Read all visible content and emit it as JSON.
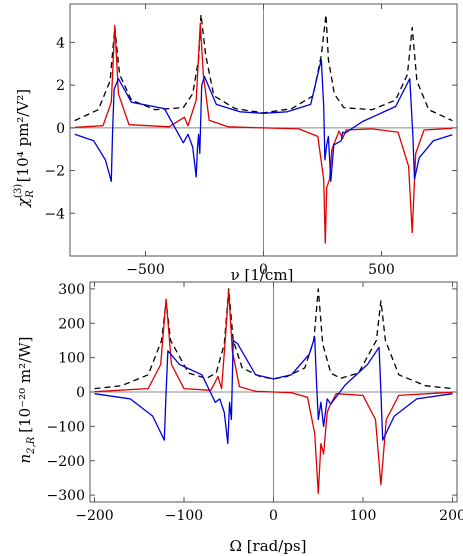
{
  "chart_data": [
    {
      "type": "line",
      "title": "",
      "xlabel": "ν [1/cm]",
      "ylabel_main": "χ",
      "ylabel_sup": "(3)",
      "ylabel_sub": "R",
      "ylabel_units": "[10⁴ pm²/V²]",
      "xlim": [
        -820,
        820
      ],
      "ylim": [
        -6.0,
        5.8
      ],
      "xticks": [
        -500,
        0,
        500
      ],
      "xtick_labels": [
        "−500",
        "0",
        "500"
      ],
      "yticks": [
        -4,
        -2,
        0,
        2,
        4
      ],
      "ytick_labels": [
        "−4",
        "−2",
        "0",
        "2",
        "4"
      ],
      "grid": false,
      "legend": "none",
      "series": [
        {
          "color": "#000000",
          "dash": "dashed",
          "values": [
            [
              -800,
              0.34
            ],
            [
              -700,
              0.85
            ],
            [
              -650,
              2.2
            ],
            [
              -630,
              4.7
            ],
            [
              -610,
              2.5
            ],
            [
              -560,
              1.3
            ],
            [
              -460,
              0.85
            ],
            [
              -340,
              0.95
            ],
            [
              -300,
              1.6
            ],
            [
              -275,
              3.2
            ],
            [
              -265,
              5.3
            ],
            [
              -245,
              3.4
            ],
            [
              -210,
              1.5
            ],
            [
              -120,
              0.9
            ],
            [
              0,
              0.7
            ],
            [
              120,
              0.9
            ],
            [
              210,
              1.5
            ],
            [
              245,
              3.4
            ],
            [
              265,
              5.3
            ],
            [
              275,
              3.2
            ],
            [
              300,
              1.6
            ],
            [
              340,
              0.95
            ],
            [
              460,
              0.85
            ],
            [
              560,
              1.3
            ],
            [
              610,
              2.5
            ],
            [
              630,
              4.7
            ],
            [
              650,
              2.2
            ],
            [
              700,
              0.85
            ],
            [
              800,
              0.34
            ]
          ]
        },
        {
          "color": "#e00000",
          "dash": "solid",
          "values": [
            [
              -800,
              0.02
            ],
            [
              -680,
              0.1
            ],
            [
              -645,
              1.2
            ],
            [
              -630,
              4.8
            ],
            [
              -615,
              1.6
            ],
            [
              -570,
              0.15
            ],
            [
              -400,
              0.05
            ],
            [
              -335,
              0.5
            ],
            [
              -320,
              0.1
            ],
            [
              -285,
              1.3
            ],
            [
              -268,
              4.9
            ],
            [
              -255,
              2.5
            ],
            [
              -230,
              0.35
            ],
            [
              -150,
              0.05
            ],
            [
              0,
              0.0
            ],
            [
              150,
              -0.05
            ],
            [
              230,
              -0.4
            ],
            [
              255,
              -2.4
            ],
            [
              262,
              -5.4
            ],
            [
              268,
              -2.8
            ],
            [
              280,
              -2.4
            ],
            [
              290,
              -1.0
            ],
            [
              320,
              -0.15
            ],
            [
              335,
              -0.5
            ],
            [
              350,
              -0.1
            ],
            [
              460,
              -0.05
            ],
            [
              570,
              -0.2
            ],
            [
              615,
              -1.8
            ],
            [
              630,
              -4.9
            ],
            [
              645,
              -1.2
            ],
            [
              680,
              -0.1
            ],
            [
              800,
              -0.02
            ]
          ]
        },
        {
          "color": "#0000dd",
          "dash": "solid",
          "values": [
            [
              -800,
              -0.3
            ],
            [
              -720,
              -0.6
            ],
            [
              -670,
              -1.5
            ],
            [
              -645,
              -2.5
            ],
            [
              -640,
              -0.3
            ],
            [
              -633,
              1.8
            ],
            [
              -615,
              2.3
            ],
            [
              -560,
              1.2
            ],
            [
              -420,
              0.9
            ],
            [
              -340,
              -0.7
            ],
            [
              -320,
              -0.3
            ],
            [
              -300,
              -0.9
            ],
            [
              -285,
              -2.3
            ],
            [
              -280,
              -1.0
            ],
            [
              -275,
              -0.3
            ],
            [
              -270,
              -1.2
            ],
            [
              -262,
              2.0
            ],
            [
              -250,
              2.4
            ],
            [
              -200,
              1.1
            ],
            [
              -100,
              0.75
            ],
            [
              0,
              0.68
            ],
            [
              100,
              0.75
            ],
            [
              200,
              1.1
            ],
            [
              245,
              3.2
            ],
            [
              255,
              1.0
            ],
            [
              260,
              -1.5
            ],
            [
              268,
              -0.8
            ],
            [
              275,
              -0.4
            ],
            [
              285,
              -2.5
            ],
            [
              298,
              -0.8
            ],
            [
              330,
              -0.6
            ],
            [
              335,
              -0.2
            ],
            [
              345,
              -0.25
            ],
            [
              420,
              0.3
            ],
            [
              560,
              1.0
            ],
            [
              620,
              2.3
            ],
            [
              633,
              -0.4
            ],
            [
              640,
              -2.4
            ],
            [
              660,
              -1.4
            ],
            [
              720,
              -0.6
            ],
            [
              800,
              -0.32
            ]
          ]
        }
      ]
    },
    {
      "type": "line",
      "title": "",
      "xlabel": "Ω [rad/ps]",
      "ylabel_main": "n",
      "ylabel_sub": "2,R",
      "ylabel_units": "[10⁻²⁰ m²/W]",
      "xlim": [
        -205,
        205
      ],
      "ylim": [
        -320,
        320
      ],
      "xticks": [
        -200,
        -100,
        0,
        100,
        200
      ],
      "xtick_labels": [
        "−200",
        "−100",
        "0",
        "100",
        "200"
      ],
      "yticks": [
        -300,
        -200,
        -100,
        0,
        100,
        200,
        300
      ],
      "ytick_labels": [
        "−300",
        "−200",
        "−100",
        "0",
        "100",
        "200",
        "300"
      ],
      "grid": false,
      "legend": "none",
      "series": [
        {
          "color": "#000000",
          "dash": "dashed",
          "values": [
            [
              -200,
              10
            ],
            [
              -170,
              18
            ],
            [
              -140,
              50
            ],
            [
              -125,
              150
            ],
            [
              -120,
              265
            ],
            [
              -115,
              150
            ],
            [
              -95,
              55
            ],
            [
              -75,
              40
            ],
            [
              -64,
              55
            ],
            [
              -55,
              140
            ],
            [
              -50,
              300
            ],
            [
              -45,
              150
            ],
            [
              -35,
              70
            ],
            [
              -15,
              45
            ],
            [
              0,
              38
            ],
            [
              15,
              45
            ],
            [
              35,
              70
            ],
            [
              45,
              150
            ],
            [
              50,
              300
            ],
            [
              55,
              140
            ],
            [
              64,
              55
            ],
            [
              75,
              40
            ],
            [
              95,
              55
            ],
            [
              115,
              150
            ],
            [
              120,
              265
            ],
            [
              125,
              150
            ],
            [
              140,
              50
            ],
            [
              170,
              18
            ],
            [
              200,
              10
            ]
          ]
        },
        {
          "color": "#e00000",
          "dash": "solid",
          "values": [
            [
              -200,
              1
            ],
            [
              -140,
              10
            ],
            [
              -126,
              80
            ],
            [
              -120,
              270
            ],
            [
              -114,
              80
            ],
            [
              -100,
              10
            ],
            [
              -70,
              5
            ],
            [
              -62,
              45
            ],
            [
              -58,
              10
            ],
            [
              -54,
              150
            ],
            [
              -50,
              295
            ],
            [
              -46,
              120
            ],
            [
              -38,
              15
            ],
            [
              -20,
              2
            ],
            [
              0,
              0
            ],
            [
              20,
              -2
            ],
            [
              38,
              -15
            ],
            [
              46,
              -120
            ],
            [
              50,
              -295
            ],
            [
              53,
              -150
            ],
            [
              56,
              -180
            ],
            [
              60,
              -60
            ],
            [
              62,
              -45
            ],
            [
              70,
              -5
            ],
            [
              100,
              -10
            ],
            [
              114,
              -80
            ],
            [
              120,
              -270
            ],
            [
              126,
              -80
            ],
            [
              140,
              -10
            ],
            [
              200,
              -1
            ]
          ]
        },
        {
          "color": "#0000dd",
          "dash": "solid",
          "values": [
            [
              -200,
              -5
            ],
            [
              -160,
              -20
            ],
            [
              -135,
              -70
            ],
            [
              -122,
              -140
            ],
            [
              -120,
              0
            ],
            [
              -118,
              120
            ],
            [
              -105,
              80
            ],
            [
              -80,
              50
            ],
            [
              -65,
              -30
            ],
            [
              -60,
              -20
            ],
            [
              -55,
              -60
            ],
            [
              -51,
              -150
            ],
            [
              -49,
              -30
            ],
            [
              -47,
              -80
            ],
            [
              -45,
              150
            ],
            [
              -40,
              140
            ],
            [
              -20,
              50
            ],
            [
              0,
              38
            ],
            [
              20,
              50
            ],
            [
              40,
              110
            ],
            [
              46,
              160
            ],
            [
              48,
              30
            ],
            [
              50,
              -80
            ],
            [
              53,
              -30
            ],
            [
              56,
              -100
            ],
            [
              60,
              -20
            ],
            [
              64,
              -35
            ],
            [
              80,
              20
            ],
            [
              105,
              80
            ],
            [
              118,
              130
            ],
            [
              120,
              0
            ],
            [
              122,
              -140
            ],
            [
              135,
              -70
            ],
            [
              160,
              -20
            ],
            [
              200,
              -5
            ]
          ]
        }
      ]
    }
  ]
}
